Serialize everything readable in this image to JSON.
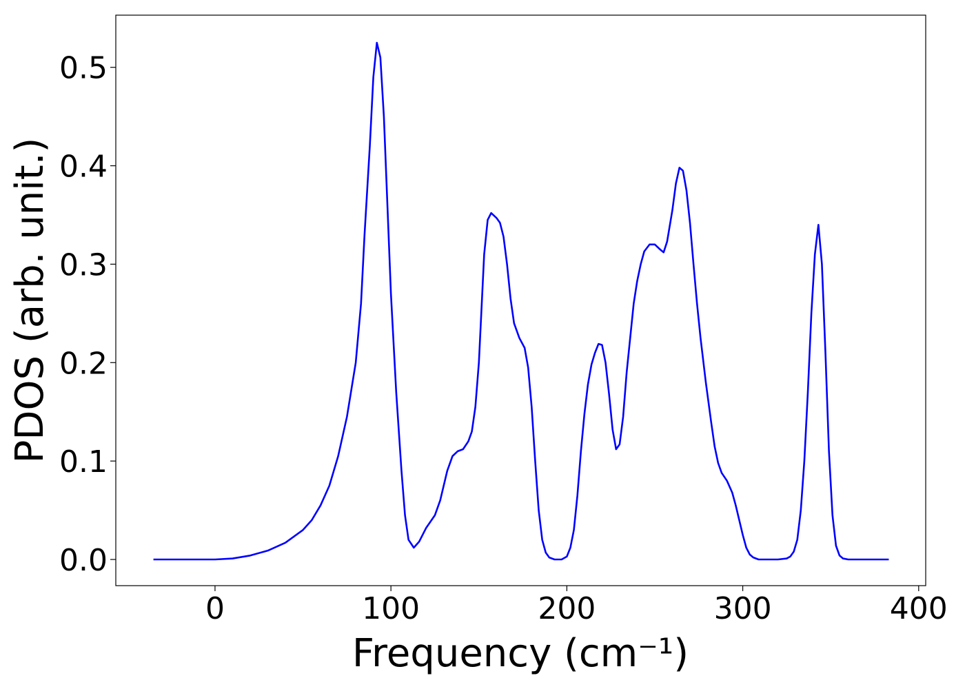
{
  "chart_data": {
    "type": "line",
    "xlabel": "Frequency (cm⁻¹)",
    "ylabel": "PDOS (arb. unit.)",
    "x": [
      -35,
      -20,
      0,
      10,
      20,
      30,
      40,
      50,
      55,
      60,
      65,
      70,
      75,
      80,
      83,
      85,
      88,
      90,
      92,
      94,
      96,
      98,
      100,
      103,
      106,
      108,
      110,
      113,
      116,
      120,
      125,
      128,
      132,
      135,
      138,
      141,
      144,
      146,
      148,
      150,
      153,
      155,
      157,
      160,
      162,
      164,
      166,
      168,
      170,
      173,
      176,
      178,
      180,
      182,
      184,
      186,
      188,
      190,
      193,
      197,
      200,
      202,
      204,
      206,
      208,
      210,
      212,
      214,
      216,
      218,
      220,
      222,
      224,
      226,
      228,
      230,
      232,
      234,
      236,
      238,
      240,
      242,
      244,
      247,
      250,
      253,
      255,
      257,
      260,
      262,
      264,
      266,
      268,
      270,
      272,
      274,
      276,
      279,
      282,
      284,
      286,
      288,
      291,
      294,
      296,
      298,
      300,
      302,
      304,
      306,
      309,
      315,
      320,
      325,
      327,
      329,
      331,
      333,
      335,
      337,
      339,
      341,
      343,
      345,
      347,
      349,
      351,
      353,
      355,
      357,
      360,
      370,
      383
    ],
    "series": [
      {
        "name": "PDOS",
        "color": "#0000ff",
        "values": [
          0,
          0,
          0,
          0.001,
          0.004,
          0.009,
          0.017,
          0.03,
          0.04,
          0.055,
          0.075,
          0.105,
          0.145,
          0.2,
          0.26,
          0.33,
          0.42,
          0.49,
          0.525,
          0.51,
          0.45,
          0.36,
          0.27,
          0.17,
          0.09,
          0.045,
          0.02,
          0.012,
          0.018,
          0.032,
          0.045,
          0.06,
          0.09,
          0.105,
          0.11,
          0.112,
          0.12,
          0.13,
          0.155,
          0.2,
          0.31,
          0.345,
          0.352,
          0.347,
          0.342,
          0.328,
          0.3,
          0.265,
          0.24,
          0.225,
          0.215,
          0.195,
          0.155,
          0.1,
          0.05,
          0.02,
          0.007,
          0.002,
          0,
          0,
          0.003,
          0.012,
          0.03,
          0.065,
          0.11,
          0.148,
          0.178,
          0.198,
          0.21,
          0.219,
          0.218,
          0.2,
          0.168,
          0.132,
          0.112,
          0.117,
          0.145,
          0.19,
          0.225,
          0.26,
          0.283,
          0.3,
          0.313,
          0.32,
          0.32,
          0.315,
          0.312,
          0.323,
          0.355,
          0.382,
          0.398,
          0.395,
          0.375,
          0.342,
          0.3,
          0.26,
          0.225,
          0.18,
          0.14,
          0.115,
          0.098,
          0.088,
          0.08,
          0.068,
          0.055,
          0.04,
          0.025,
          0.012,
          0.005,
          0.002,
          0,
          0,
          0,
          0.001,
          0.003,
          0.008,
          0.02,
          0.05,
          0.1,
          0.17,
          0.25,
          0.31,
          0.34,
          0.3,
          0.21,
          0.11,
          0.045,
          0.014,
          0.004,
          0.001,
          0,
          0,
          0
        ]
      }
    ],
    "xlim": [
      -56.4,
      404
    ],
    "ylim": [
      -0.0266,
      0.553
    ],
    "xticks": [
      0,
      100,
      200,
      300,
      400
    ],
    "yticks": [
      {
        "value": 0,
        "label": "0.0"
      },
      0.1,
      0.2,
      0.3,
      0.4,
      0.5
    ],
    "grid": false
  }
}
